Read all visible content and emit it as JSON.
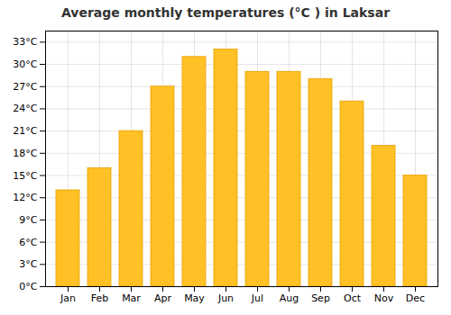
{
  "chart_data": {
    "type": "bar",
    "title": "Average monthly temperatures (°C ) in Laksar",
    "categories": [
      "Jan",
      "Feb",
      "Mar",
      "Apr",
      "May",
      "Jun",
      "Jul",
      "Aug",
      "Sep",
      "Oct",
      "Nov",
      "Dec"
    ],
    "values": [
      13,
      16,
      21,
      27,
      31,
      32,
      29,
      29,
      28,
      25,
      19,
      15
    ],
    "color": "#FFC125",
    "ylim": [
      0,
      34.5
    ],
    "yticks": [
      {
        "value": 0,
        "label": "0°C"
      },
      {
        "value": 3,
        "label": "3°C"
      },
      {
        "value": 6,
        "label": "6°C"
      },
      {
        "value": 9,
        "label": "9°C"
      },
      {
        "value": 12,
        "label": "12°C"
      },
      {
        "value": 15,
        "label": "15°C"
      },
      {
        "value": 18,
        "label": "18°C"
      },
      {
        "value": 21,
        "label": "21°C"
      },
      {
        "value": 24,
        "label": "24°C"
      },
      {
        "value": 27,
        "label": "27°C"
      },
      {
        "value": 30,
        "label": "30°C"
      },
      {
        "value": 33,
        "label": "33°C"
      }
    ],
    "grid": true
  }
}
